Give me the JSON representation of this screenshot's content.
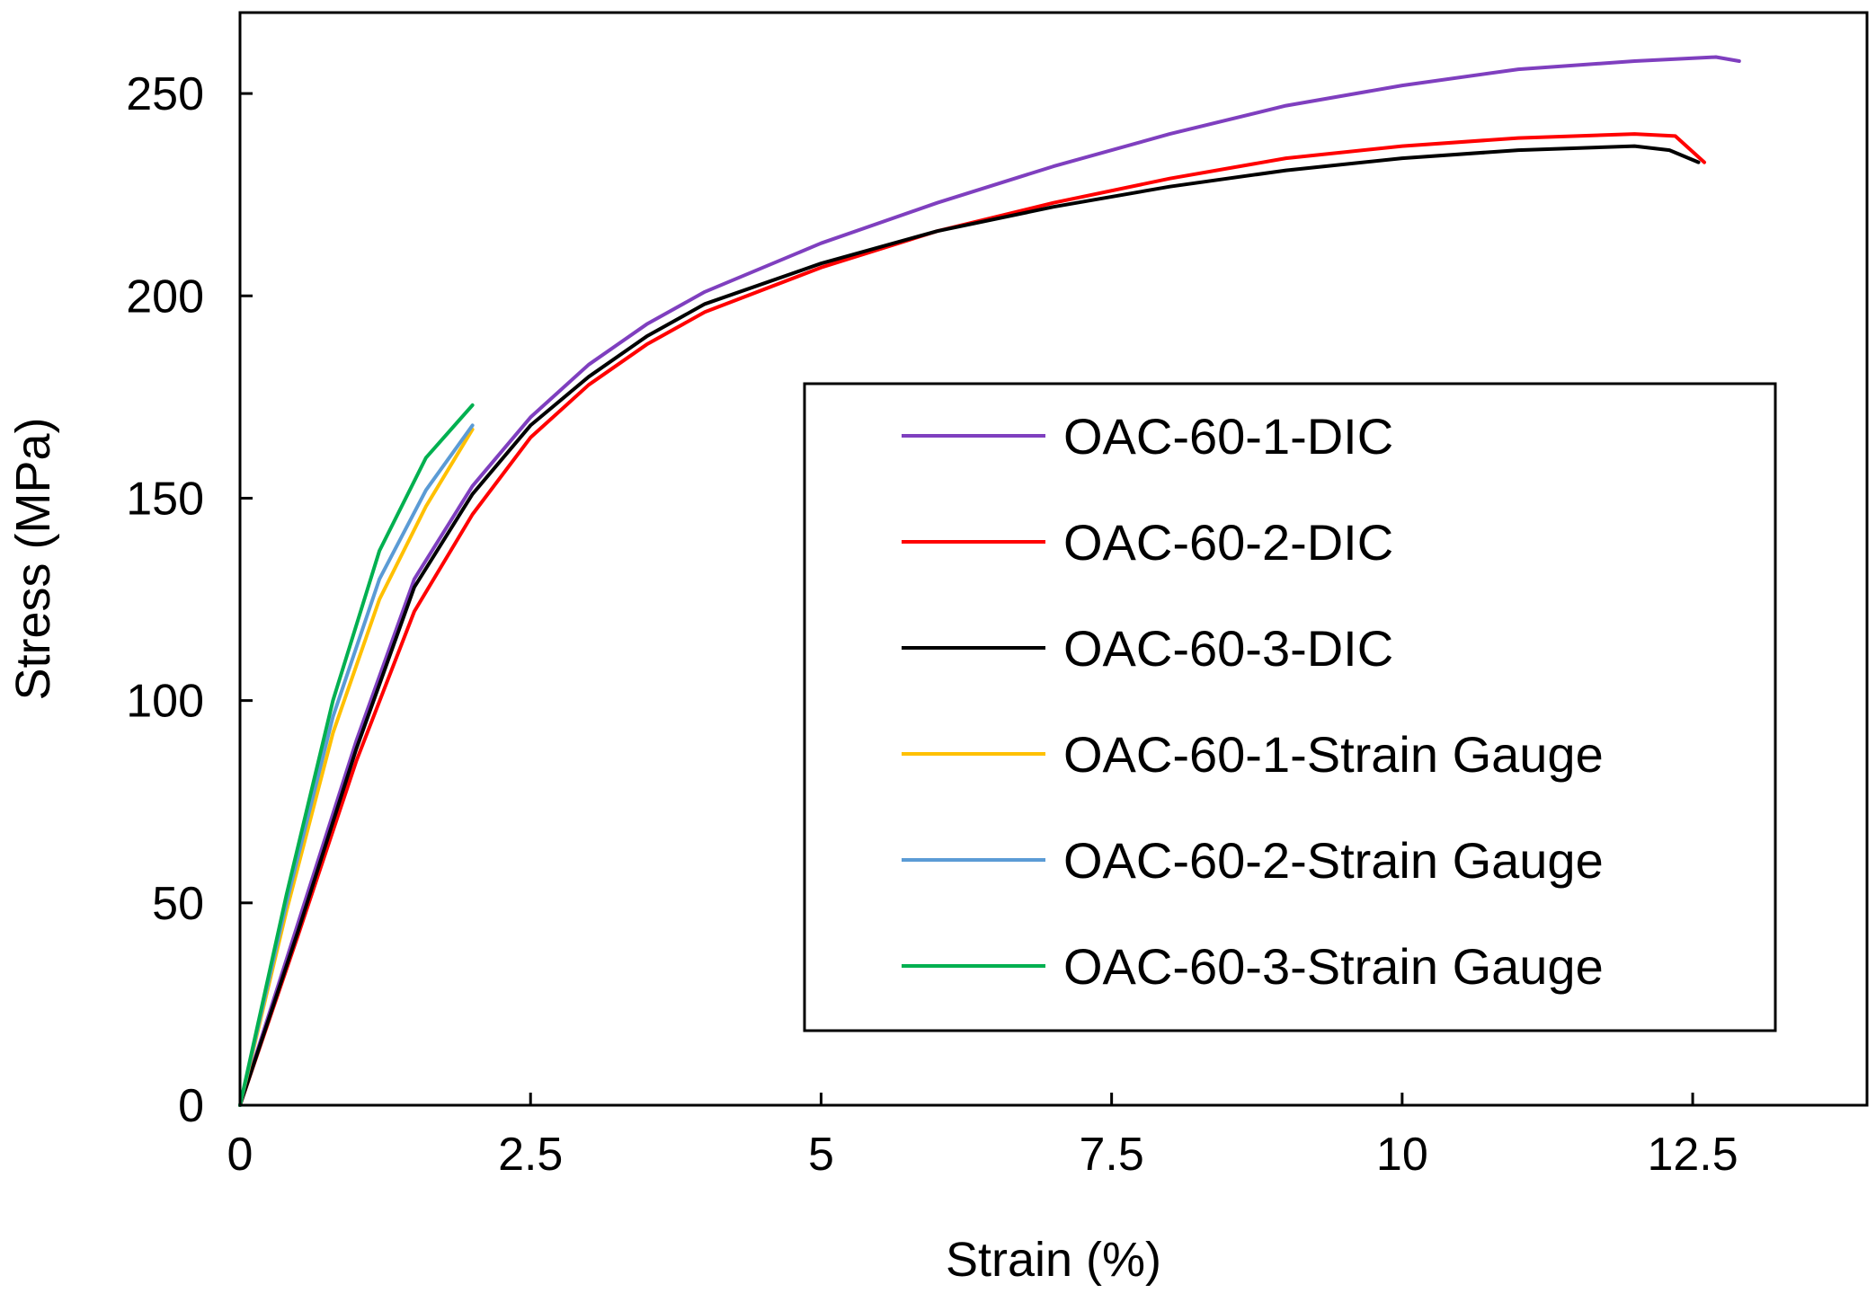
{
  "chart_data": {
    "type": "line",
    "title": "",
    "xlabel": "Strain (%)",
    "ylabel": "Stress (MPa)",
    "xlim": [
      0,
      14
    ],
    "ylim": [
      0,
      270
    ],
    "grid": false,
    "legend_position": "center-right",
    "x_ticks": [
      {
        "value": 0,
        "label": "0"
      },
      {
        "value": 2.5,
        "label": "2.5"
      },
      {
        "value": 5,
        "label": "5"
      },
      {
        "value": 7.5,
        "label": "7.5"
      },
      {
        "value": 10,
        "label": "10"
      },
      {
        "value": 12.5,
        "label": "12.5"
      }
    ],
    "y_ticks": [
      {
        "value": 0,
        "label": "0"
      },
      {
        "value": 50,
        "label": "50"
      },
      {
        "value": 100,
        "label": "100"
      },
      {
        "value": 150,
        "label": "150"
      },
      {
        "value": 200,
        "label": "200"
      },
      {
        "value": 250,
        "label": "250"
      }
    ],
    "series": [
      {
        "name": "OAC-60-1-DIC",
        "color": "#7f3fbf",
        "points": [
          [
            0,
            0
          ],
          [
            0.5,
            45
          ],
          [
            1,
            90
          ],
          [
            1.5,
            130
          ],
          [
            2,
            153
          ],
          [
            2.5,
            170
          ],
          [
            3,
            183
          ],
          [
            3.5,
            193
          ],
          [
            4,
            201
          ],
          [
            5,
            213
          ],
          [
            6,
            223
          ],
          [
            7,
            232
          ],
          [
            8,
            240
          ],
          [
            9,
            247
          ],
          [
            10,
            252
          ],
          [
            11,
            256
          ],
          [
            12,
            258
          ],
          [
            12.7,
            259
          ],
          [
            12.9,
            258
          ]
        ]
      },
      {
        "name": "OAC-60-2-DIC",
        "color": "#ff0000",
        "points": [
          [
            0,
            0
          ],
          [
            0.5,
            42
          ],
          [
            1,
            85
          ],
          [
            1.5,
            122
          ],
          [
            2,
            146
          ],
          [
            2.5,
            165
          ],
          [
            3,
            178
          ],
          [
            3.5,
            188
          ],
          [
            4,
            196
          ],
          [
            5,
            207
          ],
          [
            6,
            216
          ],
          [
            7,
            223
          ],
          [
            8,
            229
          ],
          [
            9,
            234
          ],
          [
            10,
            237
          ],
          [
            11,
            239
          ],
          [
            12,
            240
          ],
          [
            12.35,
            239.5
          ],
          [
            12.6,
            233
          ]
        ]
      },
      {
        "name": "OAC-60-3-DIC",
        "color": "#000000",
        "points": [
          [
            0,
            0
          ],
          [
            0.5,
            43
          ],
          [
            1,
            88
          ],
          [
            1.5,
            128
          ],
          [
            2,
            151
          ],
          [
            2.5,
            168
          ],
          [
            3,
            180
          ],
          [
            3.5,
            190
          ],
          [
            4,
            198
          ],
          [
            5,
            208
          ],
          [
            6,
            216
          ],
          [
            7,
            222
          ],
          [
            8,
            227
          ],
          [
            9,
            231
          ],
          [
            10,
            234
          ],
          [
            11,
            236
          ],
          [
            12,
            237
          ],
          [
            12.3,
            236
          ],
          [
            12.55,
            233
          ]
        ]
      },
      {
        "name": "OAC-60-1-Strain Gauge",
        "color": "#ffc000",
        "points": [
          [
            0,
            0
          ],
          [
            0.4,
            48
          ],
          [
            0.8,
            92
          ],
          [
            1.2,
            125
          ],
          [
            1.6,
            148
          ],
          [
            2,
            167
          ]
        ]
      },
      {
        "name": "OAC-60-2-Strain Gauge",
        "color": "#5b9bd5",
        "points": [
          [
            0,
            0
          ],
          [
            0.4,
            50
          ],
          [
            0.8,
            96
          ],
          [
            1.2,
            130
          ],
          [
            1.6,
            152
          ],
          [
            2,
            168
          ]
        ]
      },
      {
        "name": "OAC-60-3-Strain Gauge",
        "color": "#00b050",
        "points": [
          [
            0,
            0
          ],
          [
            0.4,
            52
          ],
          [
            0.8,
            100
          ],
          [
            1.2,
            137
          ],
          [
            1.6,
            160
          ],
          [
            2,
            173
          ]
        ]
      }
    ]
  }
}
